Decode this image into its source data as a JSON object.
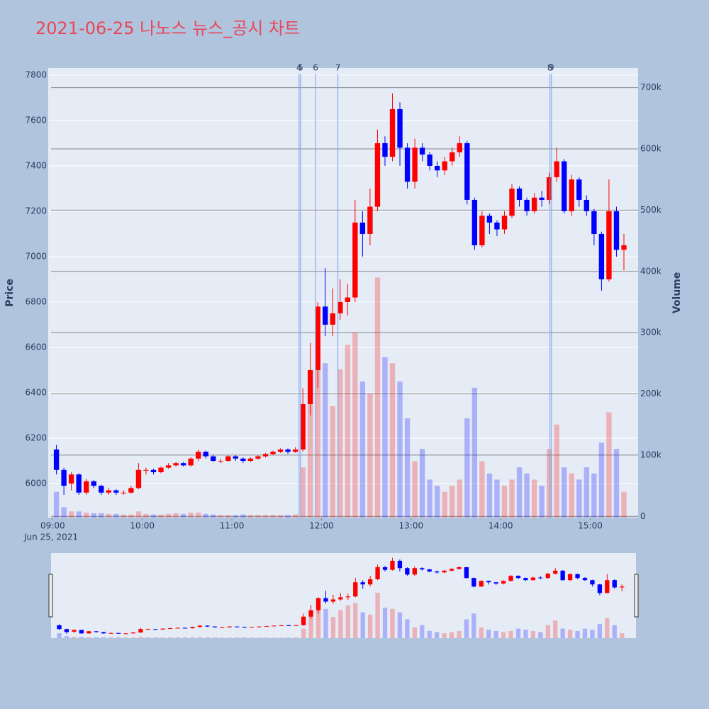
{
  "chart_data": {
    "type": "candlestick",
    "title": "2021-06-25 나노스 뉴스_공시 차트",
    "y_title": "Price",
    "y2_title": "Volume",
    "x_date_label": "Jun 25, 2021",
    "x": [
      "2021-06-25 09:00",
      "2021-06-25 09:05",
      "2021-06-25 09:10",
      "2021-06-25 09:15",
      "2021-06-25 09:20",
      "2021-06-25 09:25",
      "2021-06-25 09:30",
      "2021-06-25 09:35",
      "2021-06-25 09:40",
      "2021-06-25 09:45",
      "2021-06-25 09:50",
      "2021-06-25 09:55",
      "2021-06-25 10:00",
      "2021-06-25 10:05",
      "2021-06-25 10:10",
      "2021-06-25 10:15",
      "2021-06-25 10:20",
      "2021-06-25 10:25",
      "2021-06-25 10:30",
      "2021-06-25 10:35",
      "2021-06-25 10:40",
      "2021-06-25 10:45",
      "2021-06-25 10:50",
      "2021-06-25 10:55",
      "2021-06-25 11:00",
      "2021-06-25 11:05",
      "2021-06-25 11:10",
      "2021-06-25 11:15",
      "2021-06-25 11:20",
      "2021-06-25 11:25",
      "2021-06-25 11:30",
      "2021-06-25 11:35",
      "2021-06-25 11:40",
      "2021-06-25 11:45",
      "2021-06-25 11:50",
      "2021-06-25 11:55",
      "2021-06-25 12:00",
      "2021-06-25 12:05",
      "2021-06-25 12:10",
      "2021-06-25 12:15",
      "2021-06-25 12:20",
      "2021-06-25 12:25",
      "2021-06-25 12:30",
      "2021-06-25 12:35",
      "2021-06-25 12:40",
      "2021-06-25 12:45",
      "2021-06-25 12:50",
      "2021-06-25 12:55",
      "2021-06-25 13:00",
      "2021-06-25 13:05",
      "2021-06-25 13:10",
      "2021-06-25 13:15",
      "2021-06-25 13:20",
      "2021-06-25 13:25",
      "2021-06-25 13:30",
      "2021-06-25 13:35",
      "2021-06-25 13:40",
      "2021-06-25 13:45",
      "2021-06-25 13:50",
      "2021-06-25 13:55",
      "2021-06-25 14:00",
      "2021-06-25 14:05",
      "2021-06-25 14:10",
      "2021-06-25 14:15",
      "2021-06-25 14:20",
      "2021-06-25 14:25",
      "2021-06-25 14:30",
      "2021-06-25 14:35",
      "2021-06-25 14:40",
      "2021-06-25 14:45",
      "2021-06-25 14:50",
      "2021-06-25 14:55",
      "2021-06-25 15:00",
      "2021-06-25 15:05",
      "2021-06-25 15:10",
      "2021-06-25 15:15",
      "2021-06-25 15:20"
    ],
    "open": [
      6150,
      6060,
      6000,
      6040,
      5960,
      6010,
      5990,
      5960,
      5970,
      5960,
      5960,
      5980,
      6060,
      6060,
      6050,
      6070,
      6080,
      6090,
      6080,
      6110,
      6140,
      6120,
      6100,
      6100,
      6120,
      6110,
      6100,
      6110,
      6120,
      6130,
      6140,
      6150,
      6140,
      6150,
      6350,
      6500,
      6780,
      6700,
      6750,
      6800,
      6820,
      7150,
      7100,
      7220,
      7500,
      7440,
      7650,
      7480,
      7330,
      7480,
      7450,
      7400,
      7380,
      7420,
      7460,
      7500,
      7250,
      7050,
      7180,
      7150,
      7120,
      7180,
      7300,
      7250,
      7200,
      7260,
      7250,
      7350,
      7420,
      7200,
      7340,
      7250,
      7200,
      7100,
      6900,
      7200,
      7030
    ],
    "high": [
      6170,
      6070,
      6050,
      6045,
      6020,
      6015,
      5995,
      5980,
      5975,
      5970,
      5990,
      6090,
      6070,
      6065,
      6075,
      6090,
      6095,
      6095,
      6115,
      6150,
      6145,
      6125,
      6110,
      6125,
      6125,
      6115,
      6115,
      6125,
      6135,
      6145,
      6155,
      6155,
      6160,
      6420,
      6620,
      6800,
      6950,
      6860,
      6900,
      6880,
      7250,
      7200,
      7300,
      7560,
      7530,
      7720,
      7680,
      7500,
      7520,
      7500,
      7460,
      7420,
      7440,
      7480,
      7530,
      7510,
      7260,
      7200,
      7190,
      7160,
      7200,
      7320,
      7310,
      7260,
      7280,
      7290,
      7370,
      7480,
      7430,
      7360,
      7350,
      7270,
      7210,
      7110,
      7340,
      7220,
      7100
    ],
    "low": [
      6040,
      5950,
      5970,
      5950,
      5950,
      5980,
      5950,
      5950,
      5950,
      5950,
      5955,
      5975,
      6040,
      6040,
      6045,
      6065,
      6075,
      6075,
      6075,
      6100,
      6110,
      6095,
      6090,
      6095,
      6100,
      6090,
      6095,
      6105,
      6115,
      6125,
      6135,
      6130,
      6135,
      6140,
      6300,
      6420,
      6650,
      6650,
      6720,
      6740,
      6800,
      7000,
      7050,
      7200,
      7400,
      7420,
      7400,
      7300,
      7300,
      7420,
      7380,
      7350,
      7360,
      7400,
      7440,
      7230,
      7030,
      7040,
      7100,
      7090,
      7100,
      7170,
      7220,
      7180,
      7190,
      7220,
      7230,
      7330,
      7190,
      7180,
      7220,
      7180,
      7050,
      6850,
      6890,
      7000,
      6940
    ],
    "close": [
      6060,
      5990,
      6040,
      5960,
      6010,
      5990,
      5960,
      5970,
      5960,
      5960,
      5980,
      6060,
      6060,
      6050,
      6070,
      6080,
      6090,
      6080,
      6110,
      6140,
      6120,
      6100,
      6100,
      6120,
      6110,
      6100,
      6110,
      6120,
      6130,
      6140,
      6150,
      6140,
      6150,
      6350,
      6500,
      6780,
      6700,
      6750,
      6800,
      6820,
      7150,
      7100,
      7220,
      7500,
      7440,
      7650,
      7480,
      7330,
      7480,
      7450,
      7400,
      7380,
      7420,
      7460,
      7500,
      7250,
      7050,
      7180,
      7150,
      7120,
      7180,
      7300,
      7250,
      7200,
      7260,
      7250,
      7350,
      7420,
      7200,
      7340,
      7250,
      7200,
      7100,
      6900,
      7200,
      7030,
      7050
    ],
    "volume": [
      40000,
      15000,
      8000,
      8000,
      6000,
      5000,
      5000,
      4000,
      4000,
      3000,
      3000,
      8000,
      4000,
      3000,
      3000,
      4000,
      5000,
      4000,
      6000,
      6000,
      4000,
      3000,
      2000,
      2000,
      2000,
      3000,
      2000,
      2000,
      2000,
      2000,
      2000,
      2000,
      3000,
      80000,
      200000,
      320000,
      250000,
      180000,
      240000,
      280000,
      300000,
      220000,
      200000,
      390000,
      260000,
      250000,
      220000,
      160000,
      90000,
      110000,
      60000,
      50000,
      40000,
      50000,
      60000,
      160000,
      210000,
      90000,
      70000,
      60000,
      50000,
      60000,
      80000,
      70000,
      60000,
      50000,
      110000,
      150000,
      80000,
      70000,
      60000,
      80000,
      70000,
      120000,
      170000,
      110000,
      40000
    ],
    "increasing_color": "#ff0000",
    "decreasing_color": "#0000ff",
    "xlim": [
      "2021-06-25 08:57",
      "2021-06-25 15:32"
    ],
    "xticks": [
      {
        "value": "2021-06-25 09:00",
        "label": "09:00"
      },
      {
        "value": "2021-06-25 10:00",
        "label": "10:00"
      },
      {
        "value": "2021-06-25 11:00",
        "label": "11:00"
      },
      {
        "value": "2021-06-25 12:00",
        "label": "12:00"
      },
      {
        "value": "2021-06-25 13:00",
        "label": "13:00"
      },
      {
        "value": "2021-06-25 14:00",
        "label": "14:00"
      },
      {
        "value": "2021-06-25 15:00",
        "label": "15:00"
      }
    ],
    "ylim": [
      5850,
      7831
    ],
    "yticks": [
      6000,
      6200,
      6400,
      6600,
      6800,
      7000,
      7200,
      7400,
      7600,
      7800
    ],
    "y2lim": [
      -2000,
      732000
    ],
    "y2ticks": [
      0,
      {
        "value": 100000,
        "label": "100k"
      },
      {
        "value": 200000,
        "label": "200k"
      },
      {
        "value": 300000,
        "label": "300k"
      },
      {
        "value": 400000,
        "label": "400k"
      },
      {
        "value": 500000,
        "label": "500k"
      },
      {
        "value": 600000,
        "label": "600k"
      },
      {
        "value": 700000,
        "label": "700k"
      }
    ],
    "events": [
      {
        "x": "2021-06-25 11:45",
        "label": "4"
      },
      {
        "x": "2021-06-25 11:46",
        "label": "5"
      },
      {
        "x": "2021-06-25 11:56",
        "label": "6"
      },
      {
        "x": "2021-06-25 12:11",
        "label": "7"
      },
      {
        "x": "2021-06-25 14:33",
        "label": "8"
      },
      {
        "x": "2021-06-25 14:34",
        "label": "9"
      }
    ],
    "rangeslider": true
  }
}
